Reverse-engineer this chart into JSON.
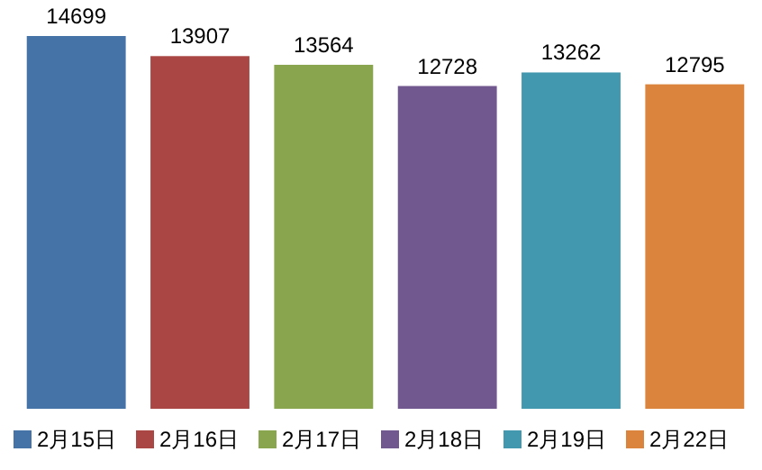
{
  "chart_data": {
    "type": "bar",
    "categories": [
      null
    ],
    "series": [
      {
        "name": "2月15日",
        "color": "#4572a7",
        "values": [
          14699
        ]
      },
      {
        "name": "2月16日",
        "color": "#aa4643",
        "values": [
          13907
        ]
      },
      {
        "name": "2月17日",
        "color": "#89a54e",
        "values": [
          13564
        ]
      },
      {
        "name": "2月18日",
        "color": "#71588f",
        "values": [
          12728
        ]
      },
      {
        "name": "2月19日",
        "color": "#4198af",
        "values": [
          13262
        ]
      },
      {
        "name": "2月22日",
        "color": "#db843d",
        "values": [
          12795
        ]
      }
    ],
    "data_labels": true,
    "legend": "bottom"
  }
}
